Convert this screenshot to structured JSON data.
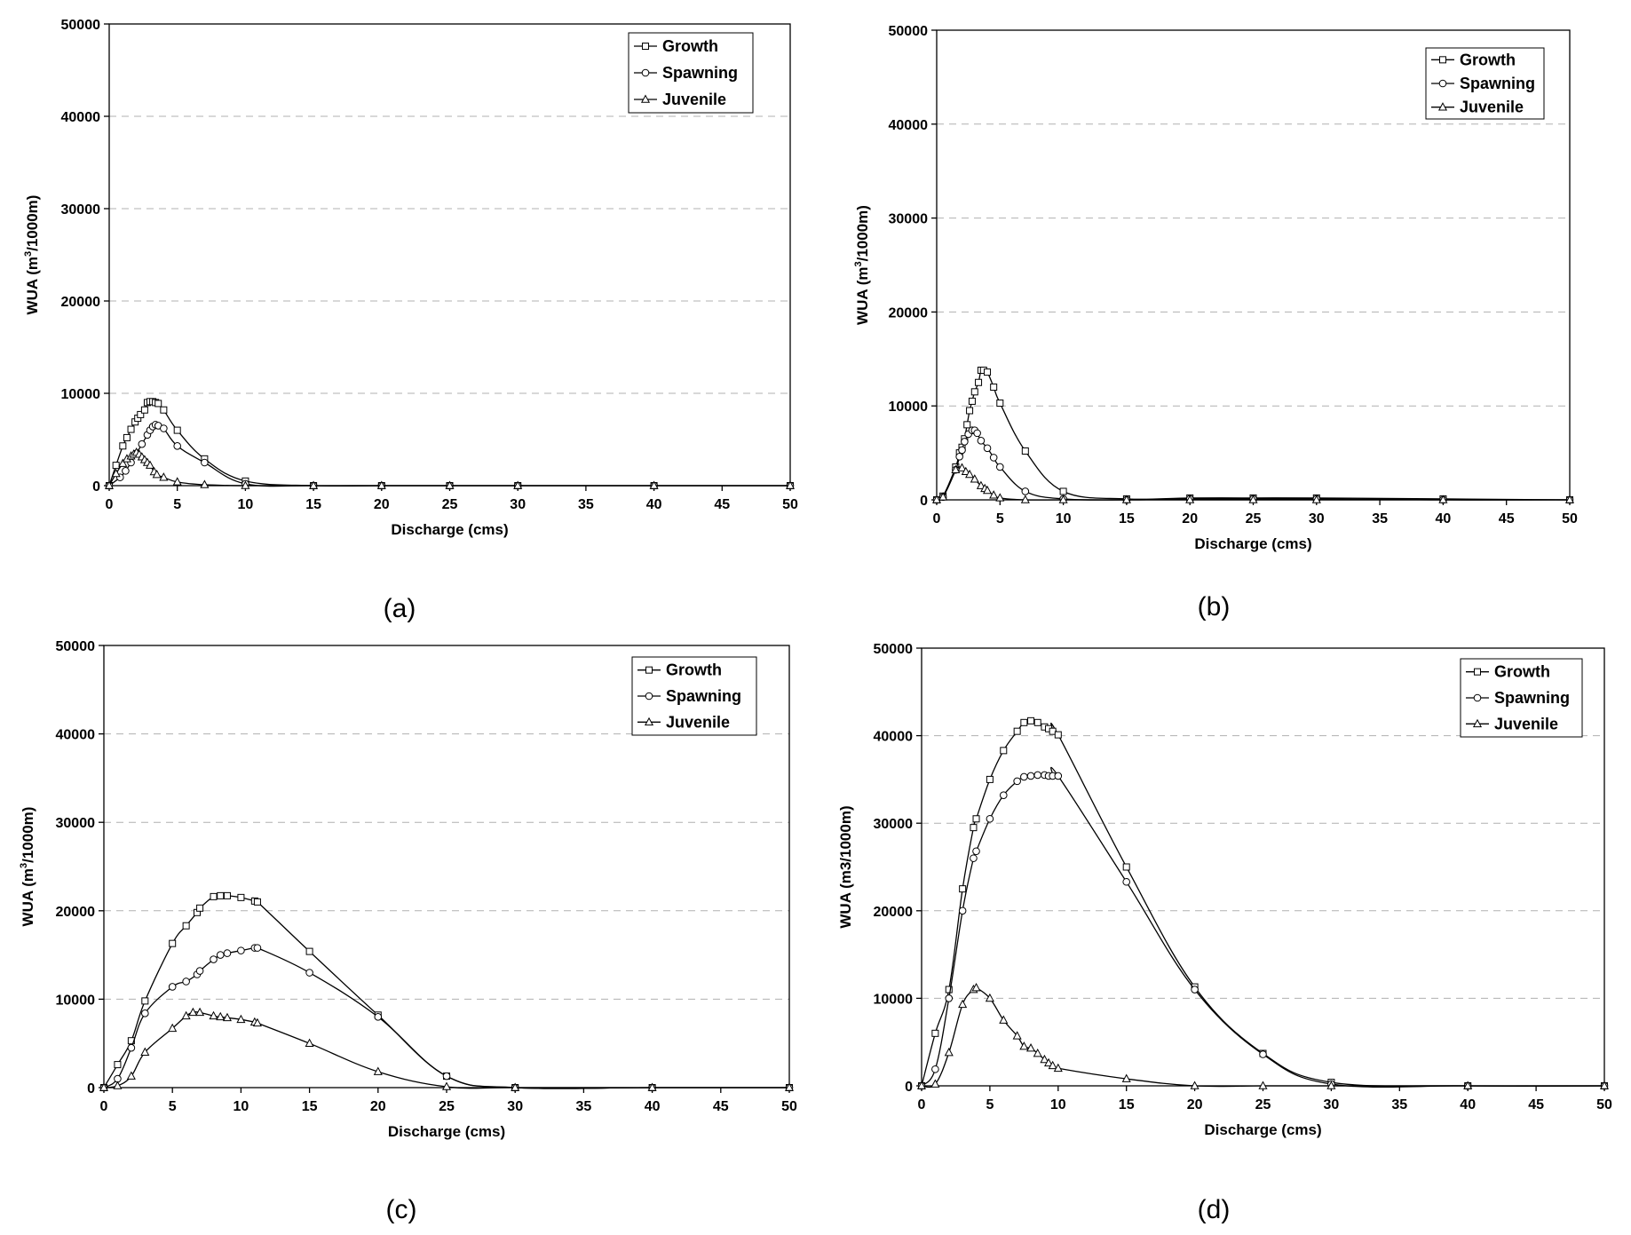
{
  "chart_data": [
    {
      "panel_label": "(a)",
      "type": "line",
      "xlabel": "Discharge (cms)",
      "ylabel_main": "WUA (m",
      "ylabel_sup": "3",
      "ylabel_tail": "/1000m)",
      "xlim": [
        0,
        50
      ],
      "ylim": [
        0,
        50000
      ],
      "xticks": [
        0,
        5,
        10,
        15,
        20,
        25,
        30,
        35,
        40,
        45,
        50
      ],
      "yticks": [
        0,
        10000,
        20000,
        30000,
        40000,
        50000
      ],
      "grid": "horizontal dashed",
      "legend_position": "top-right",
      "series": [
        {
          "name": "Growth",
          "marker": "square",
          "x": [
            0,
            0.5,
            1,
            1.3,
            1.6,
            1.9,
            2.1,
            2.3,
            2.6,
            2.8,
            3.0,
            3.2,
            3.4,
            3.6,
            4.0,
            5.0,
            7.0,
            10.0,
            15,
            20,
            25,
            30,
            40,
            50
          ],
          "y": [
            0,
            2200,
            4300,
            5200,
            6100,
            6900,
            7300,
            7700,
            8200,
            9000,
            9100,
            9100,
            9000,
            8900,
            8200,
            6000,
            2900,
            500,
            0,
            0,
            0,
            0,
            0,
            0
          ]
        },
        {
          "name": "Spawning",
          "marker": "circle",
          "x": [
            0,
            0.8,
            1.2,
            1.6,
            2.0,
            2.4,
            2.8,
            3.0,
            3.2,
            3.4,
            3.6,
            4.0,
            5.0,
            7.0,
            10,
            15,
            20,
            25,
            30,
            40,
            50
          ],
          "y": [
            0,
            900,
            1600,
            2500,
            3500,
            4500,
            5500,
            6000,
            6400,
            6600,
            6500,
            6200,
            4300,
            2500,
            200,
            0,
            0,
            0,
            0,
            0,
            0
          ]
        },
        {
          "name": "Juvenile",
          "marker": "triangle",
          "x": [
            0,
            0.5,
            1.0,
            1.3,
            1.6,
            1.8,
            2.0,
            2.2,
            2.4,
            2.6,
            2.8,
            3.0,
            3.3,
            3.5,
            4.0,
            5.0,
            7.0,
            10,
            15,
            20,
            25,
            30,
            40,
            50
          ],
          "y": [
            0,
            1300,
            2400,
            2900,
            3200,
            3400,
            3600,
            3400,
            3100,
            2800,
            2500,
            2200,
            1500,
            1200,
            900,
            400,
            100,
            0,
            0,
            0,
            0,
            0,
            0,
            0
          ]
        }
      ]
    },
    {
      "panel_label": "(b)",
      "type": "line",
      "xlabel": "Discharge (cms)",
      "ylabel_main": "WUA (m",
      "ylabel_sup": "3",
      "ylabel_tail": "/1000m)",
      "xlim": [
        0,
        50
      ],
      "ylim": [
        0,
        50000
      ],
      "xticks": [
        0,
        5,
        10,
        15,
        20,
        25,
        30,
        35,
        40,
        45,
        50
      ],
      "yticks": [
        0,
        10000,
        20000,
        30000,
        40000,
        50000
      ],
      "grid": "horizontal dashed",
      "legend_position": "top-right",
      "series": [
        {
          "name": "Growth",
          "marker": "square",
          "x": [
            0,
            0.5,
            1.5,
            1.8,
            2.0,
            2.2,
            2.4,
            2.6,
            2.8,
            3.0,
            3.3,
            3.5,
            3.7,
            4.0,
            4.5,
            5.0,
            7.0,
            10,
            15,
            20,
            25,
            30,
            40,
            50
          ],
          "y": [
            0,
            400,
            3500,
            5000,
            5600,
            6500,
            8000,
            9500,
            10500,
            11500,
            12500,
            13800,
            13800,
            13600,
            12000,
            10300,
            5200,
            900,
            100,
            200,
            200,
            200,
            100,
            0
          ]
        },
        {
          "name": "Spawning",
          "marker": "circle",
          "x": [
            0,
            0.5,
            1.5,
            1.8,
            2.0,
            2.2,
            2.5,
            2.8,
            3.0,
            3.2,
            3.5,
            4.0,
            4.5,
            5.0,
            7.0,
            10,
            15,
            20,
            25,
            30,
            40,
            50
          ],
          "y": [
            0,
            300,
            3200,
            4600,
            5300,
            6200,
            7000,
            7400,
            7400,
            7100,
            6300,
            5500,
            4500,
            3500,
            900,
            100,
            0,
            100,
            100,
            100,
            0,
            0
          ]
        },
        {
          "name": "Juvenile",
          "marker": "triangle",
          "x": [
            0,
            0.5,
            1.5,
            2.0,
            2.3,
            2.6,
            3.0,
            3.5,
            3.8,
            4.0,
            4.5,
            5.0,
            7,
            10,
            15,
            20,
            25,
            30,
            40,
            50
          ],
          "y": [
            0,
            300,
            3200,
            3400,
            3000,
            2700,
            2200,
            1500,
            1200,
            1000,
            500,
            200,
            0,
            0,
            0,
            0,
            0,
            0,
            0,
            0
          ]
        }
      ]
    },
    {
      "panel_label": "(c)",
      "type": "line",
      "xlabel": "Discharge (cms)",
      "ylabel_main": "WUA (m",
      "ylabel_sup": "3",
      "ylabel_tail": "/1000m)",
      "xlim": [
        0,
        50
      ],
      "ylim": [
        0,
        50000
      ],
      "xticks": [
        0,
        5,
        10,
        15,
        20,
        25,
        30,
        35,
        40,
        45,
        50
      ],
      "yticks": [
        0,
        10000,
        20000,
        30000,
        40000,
        50000
      ],
      "grid": "horizontal dashed",
      "legend_position": "top-right",
      "series": [
        {
          "name": "Growth",
          "marker": "square",
          "x": [
            0,
            1,
            2,
            3,
            5,
            6,
            6.8,
            7,
            8,
            8.5,
            9,
            10,
            11,
            11.2,
            15,
            20,
            25,
            30,
            40,
            50
          ],
          "y": [
            0,
            2600,
            5300,
            9800,
            16300,
            18300,
            19800,
            20300,
            21600,
            21700,
            21700,
            21500,
            21100,
            21000,
            15400,
            8200,
            1300,
            0,
            0,
            0
          ]
        },
        {
          "name": "Spawning",
          "marker": "circle",
          "x": [
            0,
            1,
            2,
            3,
            5,
            6,
            6.8,
            7,
            8,
            8.5,
            9,
            10,
            11,
            11.2,
            15,
            20,
            25,
            30,
            40,
            50
          ],
          "y": [
            0,
            1000,
            4500,
            8400,
            11400,
            12000,
            12800,
            13200,
            14500,
            15000,
            15200,
            15500,
            15800,
            15800,
            13000,
            8000,
            1300,
            0,
            0,
            0
          ]
        },
        {
          "name": "Juvenile",
          "marker": "triangle",
          "x": [
            0,
            1,
            2,
            3,
            5,
            6,
            6.5,
            7,
            8,
            8.5,
            9,
            10,
            11,
            11.2,
            15,
            20,
            25,
            30,
            40,
            50
          ],
          "y": [
            0,
            200,
            1300,
            4000,
            6700,
            8100,
            8500,
            8500,
            8100,
            8000,
            7900,
            7700,
            7400,
            7300,
            5000,
            1800,
            100,
            0,
            0,
            0
          ]
        }
      ]
    },
    {
      "panel_label": "(d)",
      "type": "line",
      "xlabel": "Discharge (cms)",
      "ylabel_main": "WUA (m3/1000m)",
      "ylabel_sup": "",
      "ylabel_tail": "",
      "xlim": [
        0,
        50
      ],
      "ylim": [
        0,
        50000
      ],
      "xticks": [
        0,
        5,
        10,
        15,
        20,
        25,
        30,
        35,
        40,
        45,
        50
      ],
      "yticks": [
        0,
        10000,
        20000,
        30000,
        40000,
        50000
      ],
      "grid": "horizontal dashed",
      "legend_position": "top-right",
      "series": [
        {
          "name": "Growth",
          "marker": "square",
          "x": [
            0,
            1,
            2,
            3,
            3.8,
            4.0,
            5,
            6,
            7,
            7.5,
            8,
            8.5,
            9,
            9.3,
            9.6,
            10,
            15,
            20,
            25,
            30,
            40,
            50
          ],
          "y": [
            0,
            6000,
            11000,
            22500,
            29500,
            30500,
            35000,
            38300,
            40500,
            41500,
            41700,
            41500,
            41000,
            40800,
            40500,
            40100,
            25000,
            11300,
            3700,
            400,
            0,
            0
          ]
        },
        {
          "name": "Spawning",
          "marker": "circle",
          "x": [
            0,
            1,
            2,
            3,
            3.8,
            4.0,
            5,
            6,
            7,
            7.5,
            8,
            8.5,
            9,
            9.3,
            9.6,
            10,
            15,
            20,
            25,
            30,
            40,
            50
          ],
          "y": [
            0,
            1900,
            10000,
            20000,
            26000,
            26800,
            30500,
            33200,
            34800,
            35300,
            35400,
            35500,
            35500,
            35400,
            35400,
            35400,
            23300,
            11000,
            3600,
            200,
            0,
            0
          ]
        },
        {
          "name": "Juvenile",
          "marker": "triangle",
          "x": [
            0,
            1,
            2,
            3,
            3.8,
            4.0,
            5,
            6,
            7,
            7.5,
            8,
            8.5,
            9,
            9.3,
            9.6,
            10,
            15,
            20,
            25,
            30,
            40,
            50
          ],
          "y": [
            0,
            200,
            3800,
            9300,
            11000,
            11200,
            10000,
            7500,
            5700,
            4500,
            4300,
            3700,
            3000,
            2600,
            2300,
            2000,
            800,
            0,
            0,
            0,
            0,
            0
          ]
        }
      ]
    }
  ]
}
